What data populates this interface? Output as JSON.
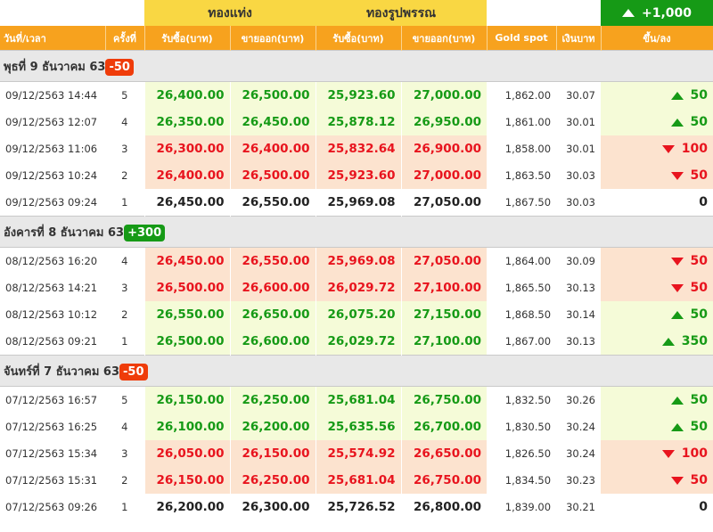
{
  "header": {
    "group_bar": "ทองแท่ง",
    "group_ornament": "ทองรูปพรรณ",
    "total_change": "+1,000",
    "columns": [
      "วันที่/เวลา",
      "ครั้งที่",
      "รับซื้อ(บาท)",
      "ขายออก(บาท)",
      "รับซื้อ(บาท)",
      "ขายออก(บาท)",
      "Gold spot",
      "เงินบาท",
      "ขึ้น/ลง"
    ]
  },
  "days": [
    {
      "label": "พุธที่ 9 ธันวาคม 63",
      "badge": "-50",
      "badge_type": "neg",
      "rows": [
        {
          "dt": "09/12/2563 14:44",
          "n": "5",
          "b1": "26,400.00",
          "s1": "26,500.00",
          "b2": "25,923.60",
          "s2": "27,000.00",
          "spot": "1,862.00",
          "thb": "30.07",
          "chg": "50",
          "dir": "up"
        },
        {
          "dt": "09/12/2563 12:07",
          "n": "4",
          "b1": "26,350.00",
          "s1": "26,450.00",
          "b2": "25,878.12",
          "s2": "26,950.00",
          "spot": "1,861.00",
          "thb": "30.01",
          "chg": "50",
          "dir": "up"
        },
        {
          "dt": "09/12/2563 11:06",
          "n": "3",
          "b1": "26,300.00",
          "s1": "26,400.00",
          "b2": "25,832.64",
          "s2": "26,900.00",
          "spot": "1,858.00",
          "thb": "30.01",
          "chg": "100",
          "dir": "down"
        },
        {
          "dt": "09/12/2563 10:24",
          "n": "2",
          "b1": "26,400.00",
          "s1": "26,500.00",
          "b2": "25,923.60",
          "s2": "27,000.00",
          "spot": "1,863.50",
          "thb": "30.03",
          "chg": "50",
          "dir": "down"
        },
        {
          "dt": "09/12/2563 09:24",
          "n": "1",
          "b1": "26,450.00",
          "s1": "26,550.00",
          "b2": "25,969.08",
          "s2": "27,050.00",
          "spot": "1,867.50",
          "thb": "30.03",
          "chg": "0",
          "dir": "flat"
        }
      ]
    },
    {
      "label": "อังคารที่ 8 ธันวาคม 63",
      "badge": "+300",
      "badge_type": "pos",
      "rows": [
        {
          "dt": "08/12/2563 16:20",
          "n": "4",
          "b1": "26,450.00",
          "s1": "26,550.00",
          "b2": "25,969.08",
          "s2": "27,050.00",
          "spot": "1,864.00",
          "thb": "30.09",
          "chg": "50",
          "dir": "down"
        },
        {
          "dt": "08/12/2563 14:21",
          "n": "3",
          "b1": "26,500.00",
          "s1": "26,600.00",
          "b2": "26,029.72",
          "s2": "27,100.00",
          "spot": "1,865.50",
          "thb": "30.13",
          "chg": "50",
          "dir": "down"
        },
        {
          "dt": "08/12/2563 10:12",
          "n": "2",
          "b1": "26,550.00",
          "s1": "26,650.00",
          "b2": "26,075.20",
          "s2": "27,150.00",
          "spot": "1,868.50",
          "thb": "30.14",
          "chg": "50",
          "dir": "up"
        },
        {
          "dt": "08/12/2563 09:21",
          "n": "1",
          "b1": "26,500.00",
          "s1": "26,600.00",
          "b2": "26,029.72",
          "s2": "27,100.00",
          "spot": "1,867.00",
          "thb": "30.13",
          "chg": "350",
          "dir": "up"
        }
      ]
    },
    {
      "label": "จันทร์ที่ 7 ธันวาคม 63",
      "badge": "-50",
      "badge_type": "neg",
      "rows": [
        {
          "dt": "07/12/2563 16:57",
          "n": "5",
          "b1": "26,150.00",
          "s1": "26,250.00",
          "b2": "25,681.04",
          "s2": "26,750.00",
          "spot": "1,832.50",
          "thb": "30.26",
          "chg": "50",
          "dir": "up"
        },
        {
          "dt": "07/12/2563 16:25",
          "n": "4",
          "b1": "26,100.00",
          "s1": "26,200.00",
          "b2": "25,635.56",
          "s2": "26,700.00",
          "spot": "1,830.50",
          "thb": "30.24",
          "chg": "50",
          "dir": "up"
        },
        {
          "dt": "07/12/2563 15:34",
          "n": "3",
          "b1": "26,050.00",
          "s1": "26,150.00",
          "b2": "25,574.92",
          "s2": "26,650.00",
          "spot": "1,826.50",
          "thb": "30.24",
          "chg": "100",
          "dir": "down"
        },
        {
          "dt": "07/12/2563 15:31",
          "n": "2",
          "b1": "26,150.00",
          "s1": "26,250.00",
          "b2": "25,681.04",
          "s2": "26,750.00",
          "spot": "1,834.50",
          "thb": "30.23",
          "chg": "50",
          "dir": "down"
        },
        {
          "dt": "07/12/2563 09:26",
          "n": "1",
          "b1": "26,200.00",
          "s1": "26,300.00",
          "b2": "25,726.52",
          "s2": "26,800.00",
          "spot": "1,839.00",
          "thb": "30.21",
          "chg": "0",
          "dir": "flat"
        }
      ]
    }
  ]
}
